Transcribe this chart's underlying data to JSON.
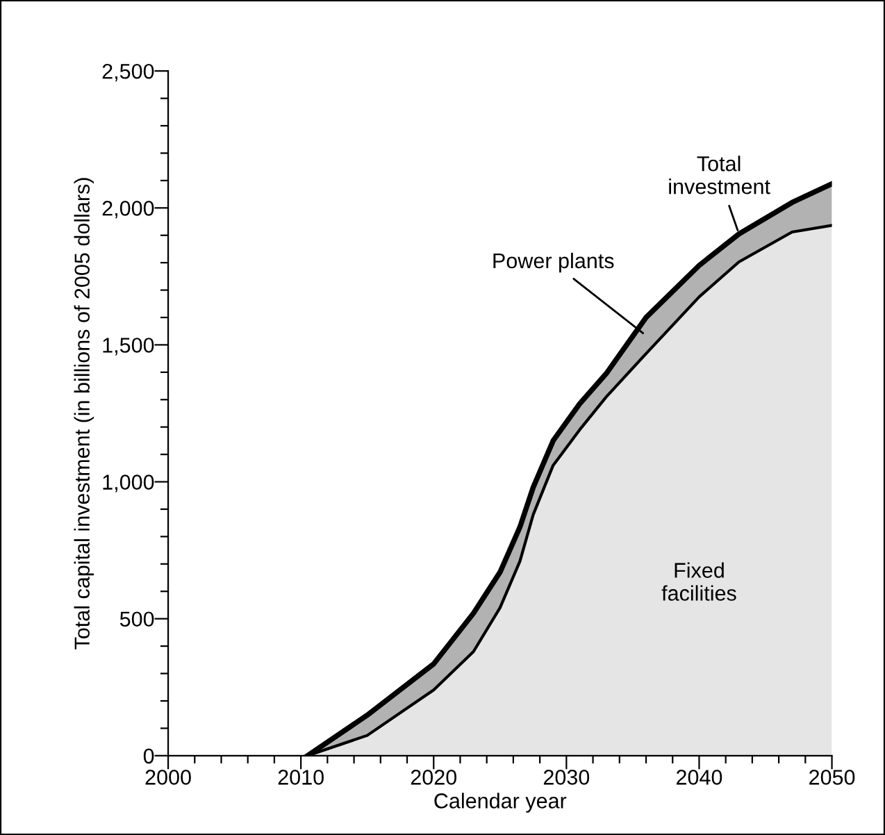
{
  "chart_data": {
    "type": "area",
    "stacked": true,
    "xlabel": "Calendar year",
    "ylabel": "Total capital investment (in billions of 2005 dollars)",
    "x": [
      2010.5,
      2015,
      2020,
      2023,
      2025,
      2026.5,
      2027.5,
      2029,
      2031,
      2033,
      2036,
      2040,
      2043,
      2047,
      2050
    ],
    "series": [
      {
        "name": "Fixed facilities",
        "color": "#e5e5e5",
        "values": [
          0,
          74,
          240,
          380,
          540,
          710,
          880,
          1060,
          1190,
          1310,
          1468,
          1675,
          1803,
          1912,
          1936
        ]
      },
      {
        "name": "Power plants",
        "color": "#b2b2b2",
        "values": [
          0,
          74,
          95,
          140,
          130,
          125,
          100,
          90,
          95,
          85,
          132,
          115,
          102,
          108,
          152
        ]
      }
    ],
    "annotations": [
      {
        "text": "Total investment",
        "x": 2043,
        "y": 1905
      }
    ],
    "xlim": [
      2000,
      2050
    ],
    "ylim": [
      0,
      2500
    ],
    "xticks": [
      2000,
      {
        "value": 2002,
        "label": null
      },
      {
        "value": 2004,
        "label": null
      },
      {
        "value": 2006,
        "label": null
      },
      {
        "value": 2008,
        "label": null
      },
      2010,
      {
        "value": 2012,
        "label": null
      },
      {
        "value": 2014,
        "label": null
      },
      {
        "value": 2016,
        "label": null
      },
      {
        "value": 2018,
        "label": null
      },
      2020,
      {
        "value": 2022,
        "label": null
      },
      {
        "value": 2024,
        "label": null
      },
      {
        "value": 2026,
        "label": null
      },
      {
        "value": 2028,
        "label": null
      },
      2030,
      {
        "value": 2032,
        "label": null
      },
      {
        "value": 2034,
        "label": null
      },
      {
        "value": 2036,
        "label": null
      },
      {
        "value": 2038,
        "label": null
      },
      2040,
      {
        "value": 2042,
        "label": null
      },
      {
        "value": 2044,
        "label": null
      },
      {
        "value": 2046,
        "label": null
      },
      {
        "value": 2048,
        "label": null
      },
      2050
    ],
    "yticks": [
      0,
      {
        "value": 100,
        "label": null
      },
      {
        "value": 200,
        "label": null
      },
      {
        "value": 300,
        "label": null
      },
      {
        "value": 400,
        "label": null
      },
      {
        "value": 500,
        "label": "500"
      },
      {
        "value": 600,
        "label": null
      },
      {
        "value": 700,
        "label": null
      },
      {
        "value": 800,
        "label": null
      },
      {
        "value": 900,
        "label": null
      },
      {
        "value": 1000,
        "label": "1,000"
      },
      {
        "value": 1100,
        "label": null
      },
      {
        "value": 1200,
        "label": null
      },
      {
        "value": 1300,
        "label": null
      },
      {
        "value": 1400,
        "label": null
      },
      {
        "value": 1500,
        "label": "1,500"
      },
      {
        "value": 1600,
        "label": null
      },
      {
        "value": 1700,
        "label": null
      },
      {
        "value": 1800,
        "label": null
      },
      {
        "value": 1900,
        "label": null
      },
      {
        "value": 2000,
        "label": "2,000"
      },
      {
        "value": 2100,
        "label": null
      },
      {
        "value": 2200,
        "label": null
      },
      {
        "value": 2300,
        "label": null
      },
      {
        "value": 2400,
        "label": null
      },
      {
        "value": 2500,
        "label": "2,500"
      }
    ],
    "grid": false,
    "legend": false
  }
}
